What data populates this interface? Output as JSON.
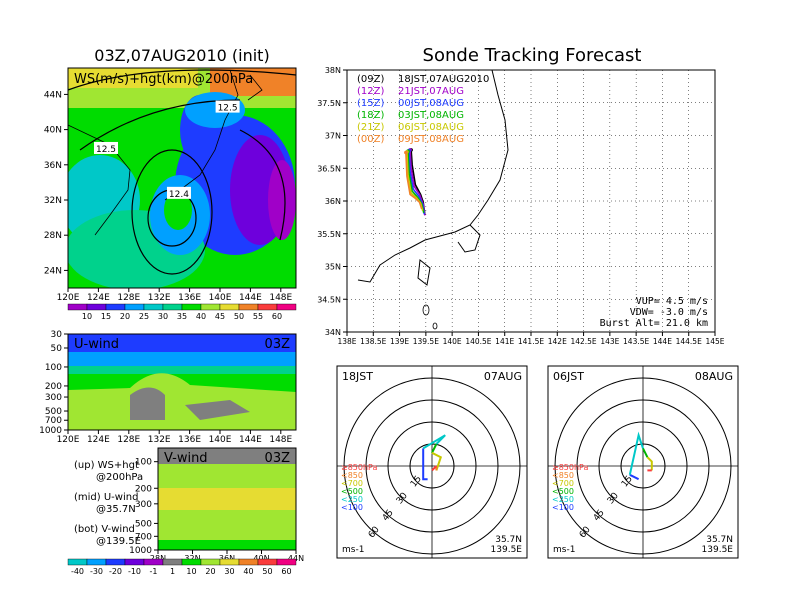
{
  "figure": {
    "left_title": "03Z,07AUG2010 (init)",
    "right_title": "Sonde Tracking Forecast"
  },
  "chart_data": [
    {
      "type": "heatmap",
      "panel": "ws-hgt-200hPa",
      "label": "WS(m/s)+hgt(km)@200hPa",
      "x_ticks": [
        "120E",
        "124E",
        "128E",
        "132E",
        "136E",
        "140E",
        "144E",
        "148E"
      ],
      "y_ticks": [
        "24N",
        "28N",
        "32N",
        "36N",
        "40N",
        "44N"
      ],
      "xlim": [
        120,
        150
      ],
      "ylim": [
        22,
        47
      ],
      "contour_labels": [
        {
          "text": "12.5",
          "lon": 141.0,
          "lat": 42.5
        },
        {
          "text": "12.5",
          "lon": 125.0,
          "lat": 37.8
        },
        {
          "text": "12.4",
          "lon": 134.6,
          "lat": 32.7
        }
      ],
      "colorbar": {
        "values": [
          "10",
          "15",
          "20",
          "25",
          "30",
          "35",
          "40",
          "45",
          "50",
          "55",
          "60"
        ],
        "colors": [
          "#a000c8",
          "#6e00dc",
          "#1e3cff",
          "#00a0ff",
          "#00c8c8",
          "#00d28c",
          "#00dc00",
          "#a0e632",
          "#e6dc32",
          "#f08228",
          "#fa3c3c",
          "#f00082"
        ]
      }
    },
    {
      "type": "heatmap",
      "panel": "u-wind",
      "label": "U-wind",
      "time": "03Z",
      "x_ticks": [
        "120E",
        "124E",
        "128E",
        "132E",
        "136E",
        "140E",
        "144E",
        "148E"
      ],
      "y_ticks": [
        "30",
        "50",
        "100",
        "200",
        "300",
        "500",
        "700",
        "1000"
      ],
      "note": "@35.7N"
    },
    {
      "type": "heatmap",
      "panel": "v-wind",
      "label": "V-wind",
      "time": "03Z",
      "x_ticks": [
        "28N",
        "32N",
        "36N",
        "40N",
        "44N"
      ],
      "y_ticks": [
        "100",
        "200",
        "300",
        "500",
        "700",
        "1000"
      ],
      "colorbar": {
        "values": [
          "-40",
          "-30",
          "-20",
          "-10",
          "-1",
          "1",
          "10",
          "20",
          "30",
          "40",
          "50",
          "60"
        ],
        "colors": [
          "#00c8c8",
          "#00a0ff",
          "#1e3cff",
          "#6e00dc",
          "#a000c8",
          "#7f7f7f",
          "#00dc00",
          "#a0e632",
          "#e6dc32",
          "#f08228",
          "#fa3c3c",
          "#f00082"
        ]
      }
    },
    {
      "type": "line",
      "panel": "sonde-track-map",
      "x_ticks": [
        "138E",
        "138.5E",
        "139E",
        "139.5E",
        "140E",
        "140.5E",
        "141E",
        "141.5E",
        "142E",
        "142.5E",
        "143E",
        "143.5E",
        "144E",
        "144.5E",
        "145E"
      ],
      "y_ticks": [
        "34N",
        "34.5N",
        "35N",
        "35.5N",
        "36N",
        "36.5N",
        "37N",
        "37.5N",
        "38N"
      ],
      "xlim": [
        138,
        145
      ],
      "ylim": [
        34,
        38
      ],
      "legend": [
        {
          "utc": "(09Z)",
          "jst": "18JST,07AUG2010",
          "color": "#000000"
        },
        {
          "utc": "(12Z)",
          "jst": "21JST,07AUG",
          "color": "#a000c8"
        },
        {
          "utc": "(15Z)",
          "jst": "00JST,08AUG",
          "color": "#1e3cff"
        },
        {
          "utc": "(18Z)",
          "jst": "03JST,08AUG",
          "color": "#00b400"
        },
        {
          "utc": "(21Z)",
          "jst": "06JST,08AUG",
          "color": "#c8c800"
        },
        {
          "utc": "(00Z)",
          "jst": "09JST,08AUG",
          "color": "#f08228"
        }
      ],
      "series": [
        {
          "color": "#000000",
          "x": [
            139.22,
            139.24,
            139.3,
            139.4,
            139.45,
            139.48
          ],
          "y": [
            36.78,
            36.55,
            36.25,
            36.1,
            35.98,
            35.8
          ]
        },
        {
          "color": "#a000c8",
          "x": [
            139.2,
            139.22,
            139.28,
            139.38,
            139.45,
            139.48
          ],
          "y": [
            36.78,
            36.5,
            36.22,
            36.1,
            35.95,
            35.78
          ]
        },
        {
          "color": "#1e3cff",
          "x": [
            139.18,
            139.2,
            139.26,
            139.36,
            139.44,
            139.47
          ],
          "y": [
            36.77,
            36.45,
            36.18,
            36.08,
            35.95,
            35.8
          ]
        },
        {
          "color": "#00b400",
          "x": [
            139.16,
            139.18,
            139.24,
            139.34,
            139.42,
            139.46
          ],
          "y": [
            36.76,
            36.42,
            36.15,
            36.06,
            35.96,
            35.82
          ]
        },
        {
          "color": "#c8c800",
          "x": [
            139.14,
            139.16,
            139.22,
            139.32,
            139.4,
            139.44
          ],
          "y": [
            36.75,
            36.4,
            36.12,
            36.05,
            35.97,
            35.85
          ]
        },
        {
          "color": "#f08228",
          "x": [
            139.12,
            139.14,
            139.2,
            139.3,
            139.38,
            139.42
          ],
          "y": [
            36.74,
            36.38,
            36.1,
            36.04,
            35.98,
            35.88
          ]
        }
      ],
      "info": {
        "vup": "VUP= 4.5 m/s",
        "vdw": "VDW= -3.0 m/s",
        "burst": "Burst Alt= 21.0 km"
      }
    },
    {
      "type": "scatter",
      "panel": "hodograph-1",
      "time": "18JST",
      "date": "07AUG",
      "rings": [
        "15",
        "30",
        "45",
        "60"
      ],
      "units": "ms-1",
      "location": [
        "35.7N",
        "139.5E"
      ],
      "legend": [
        {
          "text": "≥850hPa",
          "color": "#fa3c3c"
        },
        {
          "text": "<850",
          "color": "#f08228"
        },
        {
          "text": "<700",
          "color": "#c8c800"
        },
        {
          "text": "<500",
          "color": "#00b400"
        },
        {
          "text": "<250",
          "color": "#00c8c8"
        },
        {
          "text": "<100",
          "color": "#1e3cff"
        }
      ],
      "segments": [
        {
          "color": "#1e3cff",
          "u": [
            -1,
            -2,
            -2
          ],
          "v": [
            -3,
            -3,
            4
          ]
        },
        {
          "color": "#00c8c8",
          "u": [
            -2,
            3,
            1
          ],
          "v": [
            4,
            7,
            5
          ]
        },
        {
          "color": "#00b400",
          "u": [
            1,
            0
          ],
          "v": [
            5,
            3
          ]
        },
        {
          "color": "#c8c800",
          "u": [
            0,
            2,
            1
          ],
          "v": [
            3,
            2,
            -1
          ]
        },
        {
          "color": "#f08228",
          "u": [
            1,
            1
          ],
          "v": [
            -1,
            0
          ]
        },
        {
          "color": "#fa3c3c",
          "u": [
            1,
            0
          ],
          "v": [
            0,
            -1
          ]
        }
      ]
    },
    {
      "type": "scatter",
      "panel": "hodograph-2",
      "time": "06JST",
      "date": "08AUG",
      "rings": [
        "15",
        "30",
        "45",
        "60"
      ],
      "units": "ms-1",
      "location": [
        "35.7N",
        "139.5E"
      ],
      "legend": [
        {
          "text": "≥850hPa",
          "color": "#fa3c3c"
        },
        {
          "text": "<850",
          "color": "#f08228"
        },
        {
          "text": "<700",
          "color": "#c8c800"
        },
        {
          "text": "<500",
          "color": "#00b400"
        },
        {
          "text": "<250",
          "color": "#00c8c8"
        },
        {
          "text": "<100",
          "color": "#1e3cff"
        }
      ],
      "segments": [
        {
          "color": "#1e3cff",
          "u": [
            -1,
            -3
          ],
          "v": [
            -3,
            -2
          ]
        },
        {
          "color": "#00c8c8",
          "u": [
            -3,
            -1,
            0
          ],
          "v": [
            -2,
            7,
            4
          ]
        },
        {
          "color": "#00b400",
          "u": [
            0,
            1
          ],
          "v": [
            4,
            2
          ]
        },
        {
          "color": "#c8c800",
          "u": [
            1,
            2,
            2
          ],
          "v": [
            2,
            1,
            -1
          ]
        },
        {
          "color": "#f08228",
          "u": [
            2,
            2
          ],
          "v": [
            -1,
            -1
          ]
        },
        {
          "color": "#fa3c3c",
          "u": [
            2,
            1
          ],
          "v": [
            -1,
            -1
          ]
        }
      ]
    }
  ],
  "side_notes": [
    {
      "line1": "(up) WS+hgt",
      "line2": "@200hPa"
    },
    {
      "line1": "(mid) U-wind",
      "line2": "@35.7N"
    },
    {
      "line1": "(bot) V-wind",
      "line2": "@139.5E"
    }
  ]
}
